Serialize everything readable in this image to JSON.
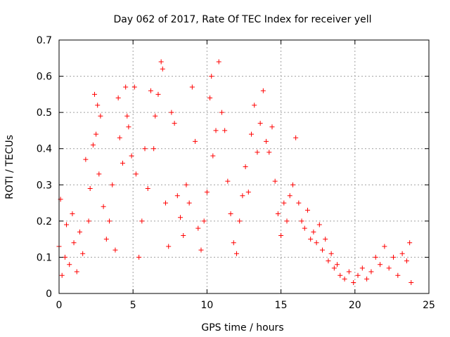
{
  "chart_data": {
    "type": "scatter",
    "title": "Day 062 of 2017, Rate Of TEC Index for receiver yell",
    "xlabel": "GPS time / hours",
    "ylabel": "ROTI / TECUs",
    "xlim": [
      0,
      25
    ],
    "ylim": [
      0,
      0.7
    ],
    "xticks": [
      0,
      5,
      10,
      15,
      20,
      25
    ],
    "yticks": [
      0,
      0.1,
      0.2,
      0.3,
      0.4,
      0.5,
      0.6,
      0.7
    ],
    "xtick_labels": [
      "0",
      "5",
      "10",
      "15",
      "20",
      "25"
    ],
    "ytick_labels": [
      "0",
      "0.1",
      "0.2",
      "0.3",
      "0.4",
      "0.5",
      "0.6",
      "0.7"
    ],
    "grid": true,
    "marker": "+",
    "series": [
      {
        "name": "ROTI",
        "color": "#ff0000",
        "note": "dense scatter; listed points are a representative sample read from the figure",
        "points": [
          [
            0.0,
            0.13
          ],
          [
            0.1,
            0.26
          ],
          [
            0.2,
            0.05
          ],
          [
            0.4,
            0.1
          ],
          [
            0.5,
            0.19
          ],
          [
            0.7,
            0.08
          ],
          [
            0.9,
            0.22
          ],
          [
            1.0,
            0.14
          ],
          [
            1.2,
            0.06
          ],
          [
            1.4,
            0.17
          ],
          [
            1.6,
            0.11
          ],
          [
            1.8,
            0.37
          ],
          [
            2.0,
            0.2
          ],
          [
            2.1,
            0.29
          ],
          [
            2.3,
            0.41
          ],
          [
            2.4,
            0.55
          ],
          [
            2.5,
            0.44
          ],
          [
            2.6,
            0.52
          ],
          [
            2.7,
            0.33
          ],
          [
            2.8,
            0.49
          ],
          [
            3.0,
            0.24
          ],
          [
            3.2,
            0.15
          ],
          [
            3.4,
            0.2
          ],
          [
            3.6,
            0.3
          ],
          [
            3.8,
            0.12
          ],
          [
            4.0,
            0.54
          ],
          [
            4.1,
            0.43
          ],
          [
            4.3,
            0.36
          ],
          [
            4.5,
            0.57
          ],
          [
            4.6,
            0.49
          ],
          [
            4.7,
            0.46
          ],
          [
            4.9,
            0.38
          ],
          [
            5.1,
            0.57
          ],
          [
            5.2,
            0.33
          ],
          [
            5.4,
            0.1
          ],
          [
            5.6,
            0.2
          ],
          [
            5.8,
            0.4
          ],
          [
            6.0,
            0.29
          ],
          [
            6.2,
            0.56
          ],
          [
            6.4,
            0.4
          ],
          [
            6.5,
            0.49
          ],
          [
            6.7,
            0.55
          ],
          [
            6.9,
            0.64
          ],
          [
            7.0,
            0.62
          ],
          [
            7.2,
            0.25
          ],
          [
            7.4,
            0.13
          ],
          [
            7.6,
            0.5
          ],
          [
            7.8,
            0.47
          ],
          [
            8.0,
            0.27
          ],
          [
            8.2,
            0.21
          ],
          [
            8.4,
            0.16
          ],
          [
            8.6,
            0.3
          ],
          [
            8.8,
            0.25
          ],
          [
            9.0,
            0.57
          ],
          [
            9.2,
            0.42
          ],
          [
            9.4,
            0.18
          ],
          [
            9.6,
            0.12
          ],
          [
            9.8,
            0.2
          ],
          [
            10.0,
            0.28
          ],
          [
            10.2,
            0.54
          ],
          [
            10.3,
            0.6
          ],
          [
            10.4,
            0.38
          ],
          [
            10.6,
            0.45
          ],
          [
            10.8,
            0.64
          ],
          [
            11.0,
            0.5
          ],
          [
            11.2,
            0.45
          ],
          [
            11.4,
            0.31
          ],
          [
            11.6,
            0.22
          ],
          [
            11.8,
            0.14
          ],
          [
            12.0,
            0.11
          ],
          [
            12.2,
            0.2
          ],
          [
            12.4,
            0.27
          ],
          [
            12.6,
            0.35
          ],
          [
            12.8,
            0.28
          ],
          [
            13.0,
            0.44
          ],
          [
            13.2,
            0.52
          ],
          [
            13.4,
            0.39
          ],
          [
            13.6,
            0.47
          ],
          [
            13.8,
            0.56
          ],
          [
            14.0,
            0.42
          ],
          [
            14.2,
            0.39
          ],
          [
            14.4,
            0.46
          ],
          [
            14.6,
            0.31
          ],
          [
            14.8,
            0.22
          ],
          [
            15.0,
            0.16
          ],
          [
            15.2,
            0.25
          ],
          [
            15.4,
            0.2
          ],
          [
            15.6,
            0.27
          ],
          [
            15.8,
            0.3
          ],
          [
            16.0,
            0.43
          ],
          [
            16.2,
            0.25
          ],
          [
            16.4,
            0.2
          ],
          [
            16.6,
            0.18
          ],
          [
            16.8,
            0.23
          ],
          [
            17.0,
            0.15
          ],
          [
            17.2,
            0.17
          ],
          [
            17.4,
            0.14
          ],
          [
            17.6,
            0.19
          ],
          [
            17.8,
            0.12
          ],
          [
            18.0,
            0.15
          ],
          [
            18.2,
            0.09
          ],
          [
            18.4,
            0.11
          ],
          [
            18.6,
            0.07
          ],
          [
            18.8,
            0.08
          ],
          [
            19.0,
            0.05
          ],
          [
            19.3,
            0.04
          ],
          [
            19.6,
            0.06
          ],
          [
            19.9,
            0.03
          ],
          [
            20.2,
            0.05
          ],
          [
            20.5,
            0.07
          ],
          [
            20.8,
            0.04
          ],
          [
            21.1,
            0.06
          ],
          [
            21.4,
            0.1
          ],
          [
            21.7,
            0.08
          ],
          [
            22.0,
            0.13
          ],
          [
            22.3,
            0.07
          ],
          [
            22.6,
            0.1
          ],
          [
            22.9,
            0.05
          ],
          [
            23.2,
            0.11
          ],
          [
            23.5,
            0.09
          ],
          [
            23.7,
            0.14
          ],
          [
            23.8,
            0.03
          ]
        ]
      }
    ]
  }
}
